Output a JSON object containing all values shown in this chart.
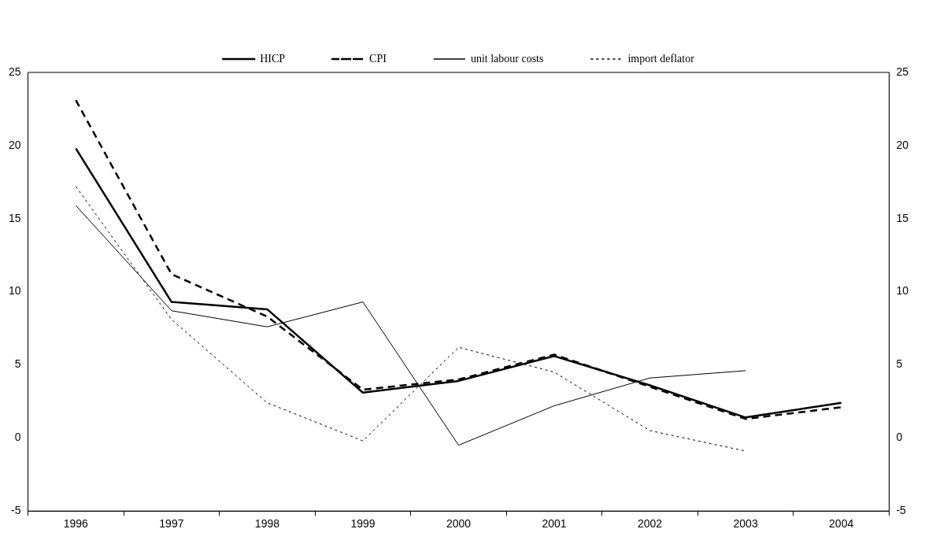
{
  "chart_data": {
    "type": "line",
    "categories": [
      "1996",
      "1997",
      "1998",
      "1999",
      "2000",
      "2001",
      "2002",
      "2003",
      "2004"
    ],
    "series": [
      {
        "name": "HICP",
        "color": "#000000",
        "line_style": "solid",
        "values": [
          19.8,
          9.3,
          8.8,
          3.1,
          3.9,
          5.6,
          3.6,
          1.4,
          2.4
        ]
      },
      {
        "name": "CPI",
        "color": "#000000",
        "line_style": "dashed",
        "values": [
          23.1,
          11.2,
          8.3,
          3.3,
          4.0,
          5.7,
          3.5,
          1.3,
          2.1
        ]
      },
      {
        "name": "unit labour costs",
        "color": "#000000",
        "line_style": "solid",
        "values": [
          15.9,
          8.7,
          7.6,
          9.3,
          -0.5,
          2.2,
          4.1,
          4.6,
          null
        ]
      },
      {
        "name": "import deflator",
        "color": "#000000",
        "line_style": "dotted",
        "values": [
          17.2,
          8.1,
          2.4,
          -0.2,
          6.2,
          4.5,
          0.5,
          -0.9,
          null
        ]
      }
    ],
    "ylim": [
      -5,
      25
    ],
    "yticks": [
      -5,
      0,
      5,
      10,
      15,
      20,
      25
    ],
    "y2lim": [
      -5,
      25
    ],
    "y2ticks": [
      -5,
      0,
      5,
      10,
      15,
      20,
      25
    ],
    "grid": false,
    "legend": "top",
    "marker": "none"
  }
}
